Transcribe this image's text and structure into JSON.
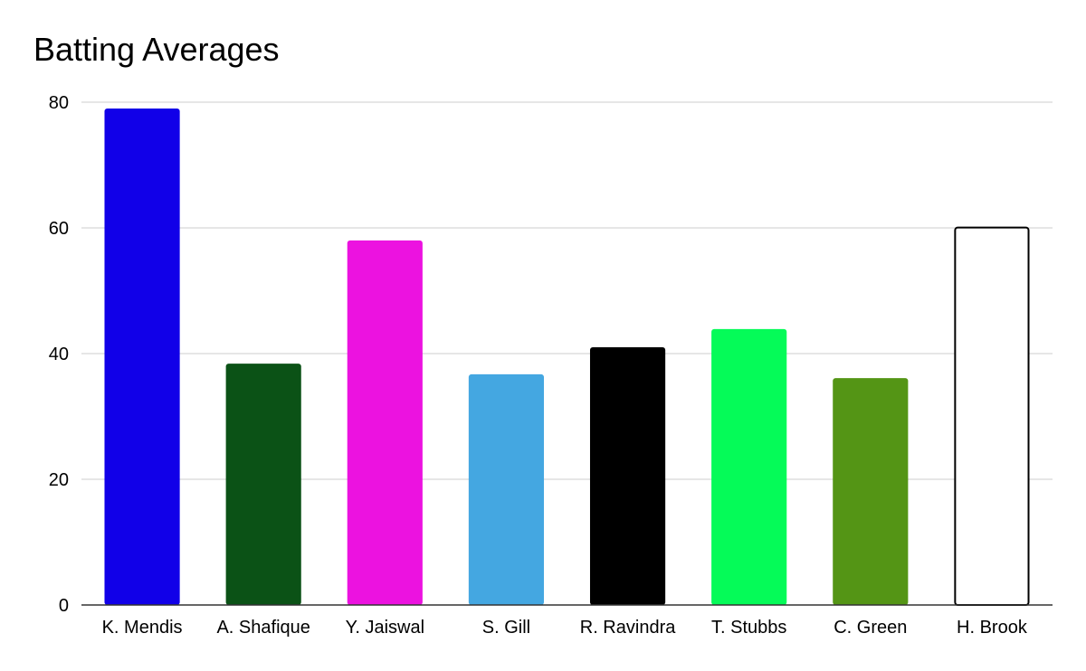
{
  "chart_data": {
    "type": "bar",
    "title": "Batting Averages",
    "xlabel": "",
    "ylabel": "",
    "categories": [
      "K. Mendis",
      "A. Shafique",
      "Y. Jaiswal",
      "S. Gill",
      "R. Ravindra",
      "T. Stubbs",
      "C. Green",
      "H. Brook"
    ],
    "values": [
      79.0,
      38.4,
      58.0,
      36.7,
      41.0,
      43.9,
      36.1,
      60.2
    ],
    "colors": [
      "#1100e8",
      "#0b5216",
      "#ec12e0",
      "#44a7e1",
      "#000000",
      "#05fb58",
      "#549515",
      "#ffffff"
    ],
    "ylim": [
      0,
      80
    ],
    "yticks": [
      0,
      20,
      40,
      60,
      80
    ],
    "grid": true,
    "legend": "none"
  }
}
